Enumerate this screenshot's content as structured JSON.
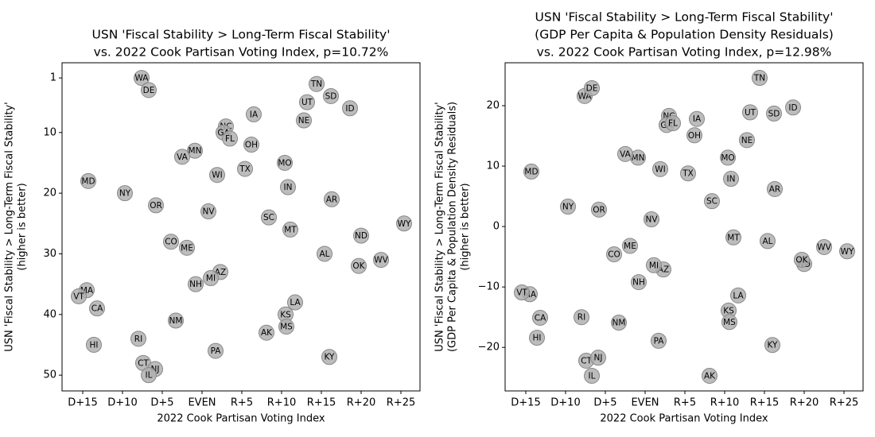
{
  "chart_data": [
    {
      "type": "scatter",
      "title": [
        "USN 'Fiscal Stability > Long-Term Fiscal Stability'",
        "vs. 2022 Cook Partisan Voting Index, p=10.72%"
      ],
      "xlabel": "2022 Cook Partisan Voting Index",
      "ylabel": [
        "USN 'Fiscal Stability > Long-Term Fiscal Stability'",
        "(higher is better)"
      ],
      "color": "#b0b0b0",
      "labels": [
        "WA",
        "DE",
        "TN",
        "SD",
        "UT",
        "ID",
        "IA",
        "NE",
        "NC",
        "GA",
        "FL",
        "OH",
        "MN",
        "VA",
        "MO",
        "TX",
        "WI",
        "MD",
        "IN",
        "NY",
        "AR",
        "OR",
        "NV",
        "SC",
        "WY",
        "MT",
        "ND",
        "CO",
        "ME",
        "AL",
        "WV",
        "OK",
        "AZ",
        "MI",
        "NH",
        "MA",
        "VT",
        "LA",
        "CA",
        "KS",
        "NM",
        "MS",
        "AK",
        "RI",
        "HI",
        "PA",
        "KY",
        "CT",
        "NJ",
        "IL"
      ],
      "x": [
        -7.6,
        -6.7,
        14.4,
        16.2,
        13.2,
        18.6,
        6.5,
        12.8,
        3.0,
        2.7,
        3.5,
        6.2,
        -0.9,
        -2.5,
        10.4,
        5.4,
        1.9,
        -14.3,
        10.8,
        -9.7,
        16.3,
        -5.8,
        0.8,
        8.4,
        25.4,
        11.1,
        20.0,
        -3.9,
        -1.9,
        15.4,
        22.5,
        19.7,
        2.3,
        1.1,
        -0.8,
        -14.5,
        -15.5,
        11.7,
        -13.2,
        10.5,
        -3.3,
        10.6,
        8.1,
        -8.0,
        -13.6,
        1.7,
        16.0,
        -7.4,
        -5.9,
        -6.7
      ],
      "values": [
        1,
        3,
        2,
        4,
        5,
        6,
        7,
        8,
        9,
        10,
        11,
        12,
        13,
        14,
        15,
        16,
        17,
        18,
        19,
        20,
        21,
        22,
        23,
        24,
        25,
        26,
        27,
        28,
        29,
        30,
        31,
        32,
        33,
        34,
        35,
        36,
        37,
        38,
        39,
        40,
        41,
        42,
        43,
        44,
        45,
        46,
        47,
        48,
        49,
        50
      ],
      "xlim": [
        -17.6,
        27.4
      ],
      "ylim": [
        52.6,
        -1.5
      ],
      "xticks": [
        {
          "value": -15,
          "label": "D+15"
        },
        {
          "value": -10,
          "label": "D+10"
        },
        {
          "value": -5,
          "label": "D+5"
        },
        {
          "value": 0,
          "label": "EVEN"
        },
        {
          "value": 5,
          "label": "R+5"
        },
        {
          "value": 10,
          "label": "R+10"
        },
        {
          "value": 15,
          "label": "R+15"
        },
        {
          "value": 20,
          "label": "R+20"
        },
        {
          "value": 25,
          "label": "R+25"
        }
      ],
      "yticks": [
        1,
        10,
        20,
        30,
        40,
        50
      ]
    },
    {
      "type": "scatter",
      "title": [
        "USN 'Fiscal Stability > Long-Term Fiscal Stability'",
        "(GDP Per Capita & Population Density Residuals)",
        "vs. 2022 Cook Partisan Voting Index, p=12.98%"
      ],
      "xlabel": "2022 Cook Partisan Voting Index",
      "ylabel": [
        "USN 'Fiscal Stability > Long-Term Fiscal Stability'",
        "(GDP Per Capita & Population Density Residuals)",
        "(higher is better)"
      ],
      "color": "#b0b0b0",
      "labels": [
        "WA",
        "DE",
        "TN",
        "SD",
        "UT",
        "ID",
        "IA",
        "NE",
        "NC",
        "GA",
        "FL",
        "OH",
        "MN",
        "VA",
        "MO",
        "TX",
        "WI",
        "MD",
        "IN",
        "NY",
        "AR",
        "OR",
        "NV",
        "SC",
        "WY",
        "MT",
        "ND",
        "CO",
        "ME",
        "AL",
        "WV",
        "OK",
        "AZ",
        "MI",
        "NH",
        "MA",
        "VT",
        "LA",
        "CA",
        "KS",
        "NM",
        "MS",
        "AK",
        "RI",
        "HI",
        "PA",
        "KY",
        "CT",
        "NJ",
        "IL"
      ],
      "x": [
        -7.6,
        -6.7,
        14.4,
        16.2,
        13.2,
        18.6,
        6.5,
        12.8,
        3.0,
        2.7,
        3.5,
        6.2,
        -0.9,
        -2.5,
        10.4,
        5.4,
        1.9,
        -14.3,
        10.8,
        -9.7,
        16.3,
        -5.8,
        0.8,
        8.4,
        25.4,
        11.1,
        20.0,
        -3.9,
        -1.9,
        15.4,
        22.5,
        19.7,
        2.3,
        1.1,
        -0.8,
        -14.5,
        -15.5,
        11.7,
        -13.2,
        10.5,
        -3.3,
        10.6,
        8.1,
        -8.0,
        -13.6,
        1.7,
        16.0,
        -7.4,
        -5.9,
        -6.7
      ],
      "values": [
        21.6,
        22.9,
        24.6,
        18.7,
        18.9,
        19.7,
        17.8,
        14.3,
        18.3,
        16.8,
        17.1,
        15.1,
        11.4,
        12.0,
        11.4,
        8.8,
        9.5,
        9.1,
        7.9,
        3.3,
        6.2,
        2.8,
        1.2,
        4.2,
        -4.1,
        -1.8,
        -6.2,
        -4.6,
        -3.2,
        -2.4,
        -3.4,
        -5.5,
        -7.1,
        -6.4,
        -9.2,
        -11.2,
        -10.9,
        -11.4,
        -15.1,
        -13.9,
        -15.9,
        -15.8,
        -24.7,
        -15.0,
        -18.4,
        -18.9,
        -19.6,
        -22.2,
        -21.7,
        -24.7
      ],
      "xlim": [
        -17.6,
        27.4
      ],
      "ylim": [
        -27.2,
        27.1
      ],
      "xticks": [
        {
          "value": -15,
          "label": "D+15"
        },
        {
          "value": -10,
          "label": "D+10"
        },
        {
          "value": -5,
          "label": "D+5"
        },
        {
          "value": 0,
          "label": "EVEN"
        },
        {
          "value": 5,
          "label": "R+5"
        },
        {
          "value": 10,
          "label": "R+10"
        },
        {
          "value": 15,
          "label": "R+15"
        },
        {
          "value": 20,
          "label": "R+20"
        },
        {
          "value": 25,
          "label": "R+25"
        }
      ],
      "yticks": [
        {
          "value": -20,
          "label": "−20"
        },
        {
          "value": -10,
          "label": "−10"
        },
        0,
        10,
        20
      ]
    }
  ]
}
